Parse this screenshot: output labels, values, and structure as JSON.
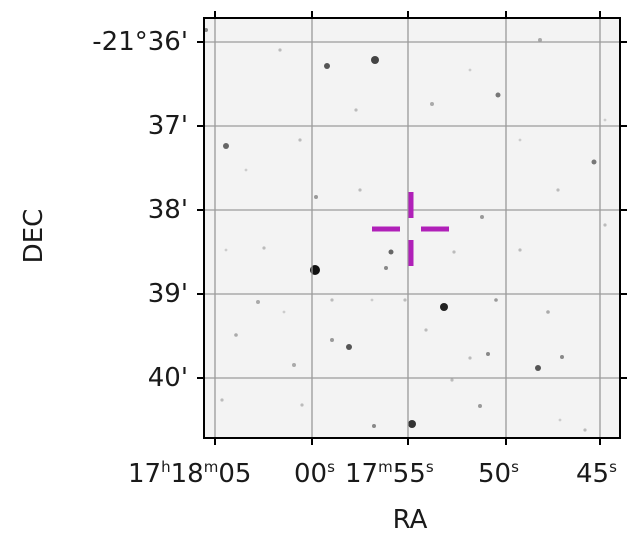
{
  "axes": {
    "x_label": "RA",
    "y_label": "DEC",
    "x_ticks": [
      {
        "main": "17",
        "h": "h",
        "mm": "18",
        "m": "m",
        "ss": "05",
        "s": "s"
      },
      {
        "main": "00",
        "s": "s"
      },
      {
        "main": "17",
        "m": "m",
        "ss": "55",
        "s": "s"
      },
      {
        "main": "50",
        "s": "s"
      },
      {
        "main": "45",
        "s": "s"
      }
    ],
    "y_ticks": [
      "-21°36'",
      "37'",
      "38'",
      "39'",
      "40'"
    ],
    "grid": true
  },
  "marker": {
    "type": "crosshair",
    "color": "#b020b8"
  },
  "background": {
    "type": "sky-image",
    "palette": "inverted-grayscale"
  }
}
